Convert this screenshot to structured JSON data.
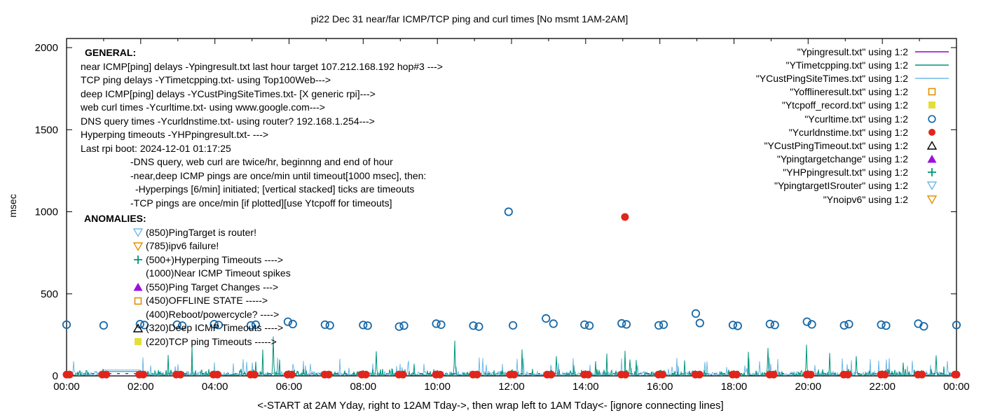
{
  "window_title": "pi22 Dec 31  near/far ICMP/TCP ping and curl times [No msmt 1AM-2AM]",
  "chart_data": {
    "type": "scatter",
    "title": "pi22 Dec 31  near/far ICMP/TCP ping and curl times [No msmt 1AM-2AM]",
    "xlabel": "<-START at 2AM Yday, right to 12AM Tday->, then wrap left to 1AM Tday<- [ignore connecting lines]",
    "ylabel": "msec",
    "x_tick_labels": [
      "00:00",
      "02:00",
      "04:00",
      "06:00",
      "08:00",
      "10:00",
      "12:00",
      "14:00",
      "16:00",
      "18:00",
      "20:00",
      "22:00",
      "00:00"
    ],
    "x_range_hours": [
      0,
      24
    ],
    "y_ticks": [
      0,
      500,
      1000,
      1500,
      2000
    ],
    "y_range_msec": [
      0,
      2055
    ],
    "grid": false,
    "legend_position": "top-right",
    "no_measurement_gap_hours": [
      1,
      2
    ],
    "series": [
      {
        "name": "\"Ypingresult.txt\" using 1:2",
        "style": "line",
        "color": "#9400d3",
        "role": "near ICMP ping delays",
        "baseline_msec": 14
      },
      {
        "name": "\"YTimetcpping.txt\" using 1:2",
        "style": "line",
        "color": "#009578",
        "role": "TCP ping delays",
        "baseline_msec": 5
      },
      {
        "name": "\"YCustPingSiteTimes.txt\" using 1:2",
        "style": "line",
        "color": "#70b8e6",
        "role": "deep ICMP ping delays",
        "baseline_msec": 20
      },
      {
        "name": "\"Yofflineresult.txt\" using 1:2",
        "style": "open-square",
        "color": "#e39000",
        "points": []
      },
      {
        "name": "\"Ytcpoff_record.txt\" using 1:2",
        "style": "filled-square",
        "color": "#e3de3a",
        "points": []
      },
      {
        "name": "\"Ycurltime.txt\" using 1:2",
        "style": "open-circle",
        "color": "#1668a8",
        "points": [
          [
            0,
            312
          ],
          [
            1,
            308
          ],
          [
            1.98,
            315
          ],
          [
            2.1,
            310
          ],
          [
            2.98,
            312
          ],
          [
            3.12,
            306
          ],
          [
            3.98,
            315
          ],
          [
            4.1,
            310
          ],
          [
            4.97,
            308
          ],
          [
            5.1,
            312
          ],
          [
            5.97,
            330
          ],
          [
            6.1,
            316
          ],
          [
            6.97,
            312
          ],
          [
            7.1,
            308
          ],
          [
            8,
            310
          ],
          [
            8.12,
            306
          ],
          [
            8.97,
            300
          ],
          [
            9.1,
            306
          ],
          [
            9.97,
            318
          ],
          [
            10.1,
            312
          ],
          [
            10.97,
            306
          ],
          [
            11.12,
            300
          ],
          [
            11.92,
            1000
          ],
          [
            12.04,
            308
          ],
          [
            12.93,
            350
          ],
          [
            13.13,
            318
          ],
          [
            13.97,
            312
          ],
          [
            14.1,
            306
          ],
          [
            14.97,
            320
          ],
          [
            15.1,
            314
          ],
          [
            15.97,
            308
          ],
          [
            16.1,
            312
          ],
          [
            16.97,
            380
          ],
          [
            17.08,
            322
          ],
          [
            17.97,
            310
          ],
          [
            18.1,
            305
          ],
          [
            18.97,
            316
          ],
          [
            19.1,
            310
          ],
          [
            19.97,
            330
          ],
          [
            20.1,
            314
          ],
          [
            20.97,
            308
          ],
          [
            21.1,
            315
          ],
          [
            21.97,
            312
          ],
          [
            22.1,
            306
          ],
          [
            22.97,
            318
          ],
          [
            23.12,
            302
          ],
          [
            24,
            310
          ]
        ]
      },
      {
        "name": "\"Ycurldnstime.txt\" using 1:2",
        "style": "filled-circle",
        "color": "#e1251b",
        "points": [
          [
            0,
            8
          ],
          [
            0.08,
            8
          ],
          [
            0.96,
            8
          ],
          [
            1.07,
            8
          ],
          [
            1.96,
            8
          ],
          [
            2.07,
            8
          ],
          [
            2.96,
            8
          ],
          [
            3.07,
            8
          ],
          [
            3.96,
            8
          ],
          [
            4.07,
            8
          ],
          [
            4.96,
            8
          ],
          [
            5.07,
            8
          ],
          [
            5.96,
            8
          ],
          [
            6.07,
            8
          ],
          [
            6.96,
            8
          ],
          [
            7.07,
            8
          ],
          [
            7.96,
            8
          ],
          [
            8.07,
            8
          ],
          [
            8.96,
            8
          ],
          [
            9.07,
            8
          ],
          [
            9.96,
            8
          ],
          [
            10.07,
            8
          ],
          [
            10.96,
            8
          ],
          [
            11.07,
            8
          ],
          [
            11.96,
            8
          ],
          [
            12.07,
            8
          ],
          [
            12.96,
            8
          ],
          [
            13.07,
            8
          ],
          [
            13.96,
            8
          ],
          [
            14.07,
            8
          ],
          [
            14.96,
            8
          ],
          [
            15.07,
            8
          ],
          [
            15.06,
            968
          ],
          [
            15.96,
            8
          ],
          [
            16.07,
            8
          ],
          [
            16.96,
            8
          ],
          [
            17.07,
            8
          ],
          [
            17.96,
            8
          ],
          [
            18.07,
            8
          ],
          [
            18.96,
            8
          ],
          [
            19.07,
            8
          ],
          [
            19.96,
            8
          ],
          [
            20.07,
            8
          ],
          [
            20.96,
            8
          ],
          [
            21.07,
            8
          ],
          [
            21.96,
            8
          ],
          [
            22.07,
            8
          ],
          [
            22.96,
            8
          ],
          [
            23.07,
            8
          ],
          [
            23.96,
            8
          ],
          [
            24,
            8
          ]
        ]
      },
      {
        "name": "\"YCustPingTimeout.txt\" using 1:2",
        "style": "open-triangle",
        "color": "#000000",
        "points": []
      },
      {
        "name": "\"Ypingtargetchange\" using 1:2",
        "style": "filled-triangle",
        "color": "#9b0fe0",
        "points": []
      },
      {
        "name": "\"YHPpingresult.txt\" using 1:2",
        "style": "plus",
        "color": "#009578",
        "points": []
      },
      {
        "name": "\"YpingtargetISrouter\" using 1:2",
        "style": "open-down-triangle",
        "color": "#70b8e6",
        "points": []
      },
      {
        "name": "\"Ynoipv6\" using 1:2",
        "style": "open-down-triangle",
        "color": "#e39000",
        "points": []
      }
    ],
    "noise": {
      "seed": 20241231,
      "teal_notable_spikes_hour_msec": [
        [
          5.57,
          240
        ],
        [
          8.35,
          150
        ],
        [
          10.47,
          215
        ],
        [
          13.2,
          120
        ],
        [
          15.2,
          100
        ],
        [
          18.92,
          170
        ],
        [
          19.95,
          190
        ],
        [
          21.3,
          120
        ],
        [
          23.45,
          125
        ]
      ],
      "gap_flat_msec": {
        "deep_icmp": 36,
        "tcp": 27,
        "near_icmp": 14
      }
    }
  },
  "general_block": {
    "heading": "GENERAL:",
    "lines": [
      {
        "indent": 0,
        "text": "near ICMP[ping] delays -Ypingresult.txt last hour target 107.212.168.192 hop#3 --->"
      },
      {
        "indent": 0,
        "text": "TCP ping delays -YTimetcpping.txt- using Top100Web--->"
      },
      {
        "indent": 0,
        "text": "deep ICMP[ping] delays -YCustPingSiteTimes.txt- [X generic rpi]--->"
      },
      {
        "indent": 0,
        "text": "web curl times -Ycurltime.txt- using www.google.com--->"
      },
      {
        "indent": 0,
        "text": "DNS query times -Ycurldnstime.txt- using router? 192.168.1.254--->"
      },
      {
        "indent": 0,
        "text": "Hyperping timeouts -YHPpingresult.txt- --->"
      },
      {
        "indent": 0,
        "text": "Last rpi boot: 2024-12-01 01:17:25"
      },
      {
        "indent": 71,
        "text": "-DNS query, web curl are twice/hr, beginnng and end of hour"
      },
      {
        "indent": 71,
        "text": "-near,deep ICMP pings are once/min until timeout[1000 msec], then:"
      },
      {
        "indent": 78,
        "text": "-Hyperpings [6/min] initiated; [vertical stacked] ticks are timeouts"
      },
      {
        "indent": 71,
        "text": "-TCP pings are once/min [if plotted][use Ytcpoff for timeouts]"
      }
    ]
  },
  "anomalies_block": {
    "heading": "ANOMALIES:",
    "lines": [
      {
        "marker": "open-down-triangle",
        "color": "#70b8e6",
        "text": "(850)PingTarget is router!"
      },
      {
        "marker": "open-down-triangle",
        "color": "#e39000",
        "text": "(785)ipv6 failure!"
      },
      {
        "marker": "plus",
        "color": "#009578",
        "text": "(500+)Hyperping Timeouts ---->"
      },
      {
        "marker": "",
        "color": "",
        "text": "(1000)Near ICMP Timeout spikes"
      },
      {
        "marker": "filled-triangle",
        "color": "#9b0fe0",
        "text": "(550)Ping Target Changes --->"
      },
      {
        "marker": "open-square",
        "color": "#e39000",
        "text": "(450)OFFLINE STATE ----->"
      },
      {
        "marker": "",
        "color": "",
        "text": "(400)Reboot/powercycle? ---->"
      },
      {
        "marker": "open-triangle",
        "color": "#000000",
        "text": "(320)Deep ICMP Timeouts ---->"
      },
      {
        "marker": "filled-square",
        "color": "#e3de3a",
        "text": "(220)TCP ping Timeouts ----->"
      }
    ]
  }
}
